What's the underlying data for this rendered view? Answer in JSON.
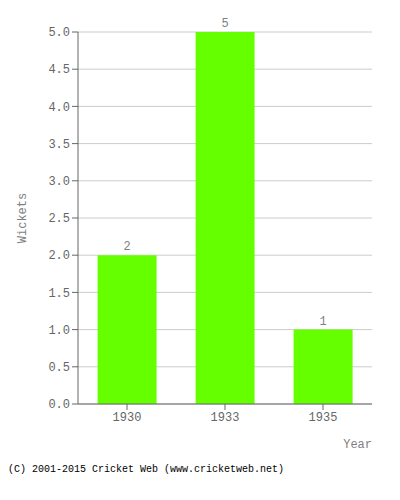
{
  "chart_data": {
    "type": "bar",
    "categories": [
      "1930",
      "1933",
      "1935"
    ],
    "values": [
      2,
      5,
      1
    ],
    "color": "#66ff00",
    "xlabel": "Year",
    "ylabel": "Wickets",
    "ylim": [
      0.0,
      5.0
    ],
    "yticks": [
      {
        "value": 0,
        "label": "0.0"
      },
      0.5,
      {
        "value": 1,
        "label": "1.0"
      },
      1.5,
      {
        "value": 2,
        "label": "2.0"
      },
      2.5,
      {
        "value": 3,
        "label": "3.0"
      },
      3.5,
      {
        "value": 4,
        "label": "4.0"
      },
      4.5,
      {
        "value": 5,
        "label": "5.0"
      }
    ],
    "grid": true,
    "data_labels": true,
    "footer": "(C) 2001-2015 Cricket Web (www.cricketweb.net)"
  }
}
